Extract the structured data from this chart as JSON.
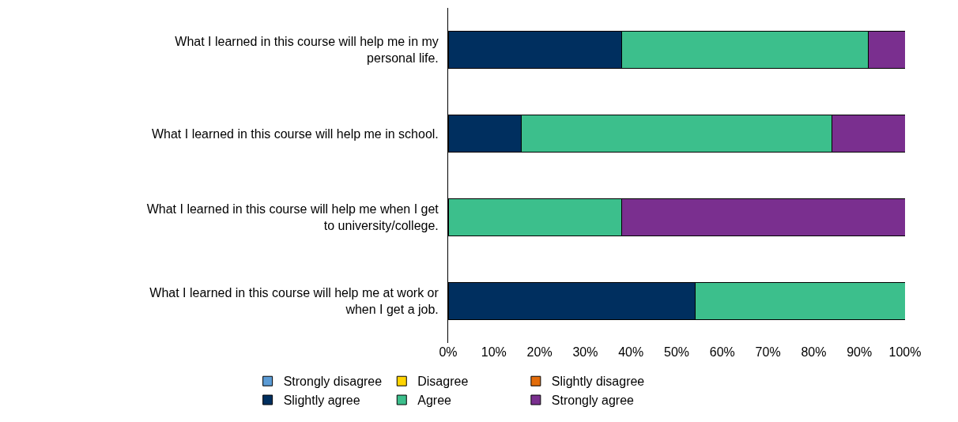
{
  "chart_data": {
    "type": "bar",
    "orientation": "horizontal",
    "stacked": true,
    "categories": [
      "What I learned in this course will help me in my personal life.",
      "What I learned in this course will help me in school.",
      "What I learned in this course will help me when I get to university/college.",
      "What I learned in this course will help me at work or when I get a job."
    ],
    "series": [
      {
        "name": "Strongly disagree",
        "color": "#5b9bd5",
        "values": [
          null,
          null,
          null,
          null
        ]
      },
      {
        "name": "Disagree",
        "color": "#ffd400",
        "values": [
          null,
          null,
          null,
          null
        ]
      },
      {
        "name": "Slightly disagree",
        "color": "#e36c0a",
        "values": [
          null,
          null,
          null,
          null
        ]
      },
      {
        "name": "Slightly agree",
        "color": "#002f5f",
        "values": [
          38,
          16,
          null,
          54
        ]
      },
      {
        "name": "Agree",
        "color": "#3cbf8c",
        "values": [
          54,
          68,
          38,
          46
        ]
      },
      {
        "name": "Strongly agree",
        "color": "#7a2f8f",
        "values": [
          8,
          16,
          62,
          null
        ]
      }
    ],
    "xlim": [
      0,
      100
    ],
    "xticks": [
      {
        "value": 0,
        "label": "0%"
      },
      {
        "value": 10,
        "label": "10%"
      },
      {
        "value": 20,
        "label": "20%"
      },
      {
        "value": 30,
        "label": "30%"
      },
      {
        "value": 40,
        "label": "40%"
      },
      {
        "value": 50,
        "label": "50%"
      },
      {
        "value": 60,
        "label": "60%"
      },
      {
        "value": 70,
        "label": "70%"
      },
      {
        "value": 80,
        "label": "80%"
      },
      {
        "value": 90,
        "label": "90%"
      },
      {
        "value": 100,
        "label": "100%"
      }
    ],
    "grid": false,
    "legend": "bottom"
  }
}
